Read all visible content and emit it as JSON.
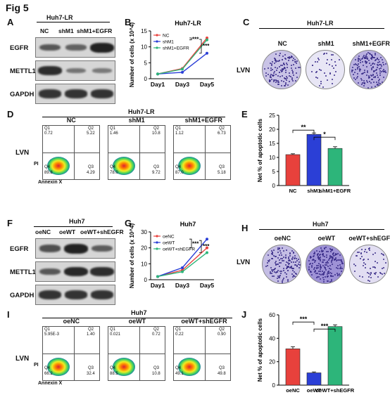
{
  "figure_title": "Fig 5",
  "panels": {
    "A": {
      "label": "A",
      "cell_line": "Huh7-LR",
      "lanes": [
        "NC",
        "shM1",
        "shM1+EGFR"
      ],
      "blots": [
        "EGFR",
        "METTL1",
        "GAPDH"
      ],
      "band_intensity": {
        "EGFR": [
          0.55,
          0.45,
          1.0
        ],
        "METTL1": [
          0.9,
          0.3,
          0.25
        ],
        "GAPDH": [
          0.85,
          0.85,
          0.85
        ]
      }
    },
    "B": {
      "label": "B"
    },
    "C": {
      "label": "C",
      "cell_line": "Huh7-LR",
      "groups": [
        "NC",
        "shM1",
        "shM1+EGFR"
      ],
      "row_label": "LVN"
    },
    "D": {
      "label": "D",
      "cell_line": "Huh7-LR",
      "groups": [
        "NC",
        "shM1",
        "shM1+EGFR"
      ],
      "row_label": "LVN",
      "y_axis": "PI",
      "x_axis": "Annexin X",
      "plots": [
        {
          "q1": "0.72",
          "q2": "5.22",
          "q3": "4.29",
          "q4": "89.8"
        },
        {
          "q1": "1.46",
          "q2": "10.8",
          "q3": "9.72",
          "q4": "78.0"
        },
        {
          "q1": "1.12",
          "q2": "6.73",
          "q3": "5.18",
          "q4": "87.0"
        }
      ]
    },
    "E": {
      "label": "E"
    },
    "F": {
      "label": "F",
      "cell_line": "Huh7",
      "lanes": [
        "oeNC",
        "oeWT",
        "oeWT+shEGFR"
      ],
      "blots": [
        "EGFR",
        "METTL1",
        "GAPDH"
      ],
      "band_intensity": {
        "EGFR": [
          0.6,
          1.0,
          0.5
        ],
        "METTL1": [
          0.55,
          0.95,
          0.9
        ],
        "GAPDH": [
          0.85,
          0.85,
          0.85
        ]
      }
    },
    "G": {
      "label": "G"
    },
    "H": {
      "label": "H",
      "cell_line": "Huh7",
      "groups": [
        "oeNC",
        "oeWT",
        "oeWT+shEGFR"
      ],
      "row_label": "LVN"
    },
    "I": {
      "label": "I",
      "cell_line": "Huh7",
      "groups": [
        "oeNC",
        "oeWT",
        "oeWT+shEGFR"
      ],
      "row_label": "LVN",
      "y_axis": "PI",
      "x_axis": "Annexin X",
      "plots": [
        {
          "q1": "5.95E-3",
          "q2": "1.40",
          "q3": "32.4",
          "q4": "66.2"
        },
        {
          "q1": "0.021",
          "q2": "0.72",
          "q3": "10.8",
          "q4": "88.5"
        },
        {
          "q1": "0.22",
          "q2": "0.90",
          "q3": "49.8",
          "q4": "49.1"
        }
      ]
    },
    "J": {
      "label": "J"
    }
  },
  "chart_data": [
    {
      "id": "B",
      "type": "line",
      "title": "Huh7-LR",
      "xlabel": "",
      "ylabel": "Number of cells (x 10^4)",
      "categories": [
        "Day1",
        "Day3",
        "Day5"
      ],
      "ylim": [
        0,
        15
      ],
      "yticks": [
        0,
        5,
        10,
        15
      ],
      "series": [
        {
          "name": "NC",
          "color": "#e8413c",
          "values": [
            1.5,
            3.2,
            12.8
          ]
        },
        {
          "name": "shM1",
          "color": "#2b3fd6",
          "values": [
            1.5,
            2.0,
            8.0
          ]
        },
        {
          "name": "shM1+EGFR",
          "color": "#2db57a",
          "values": [
            1.5,
            3.0,
            12.2
          ]
        }
      ],
      "annotations": [
        "***",
        "***"
      ],
      "legend": "top-left"
    },
    {
      "id": "E",
      "type": "bar",
      "title": "",
      "xlabel": "",
      "ylabel": "Net % of apoptotic cells",
      "categories": [
        "NC",
        "shM1",
        "shM1+EGFR"
      ],
      "values": [
        11,
        18.2,
        13.2
      ],
      "errors": [
        0.3,
        0.5,
        0.6
      ],
      "colors": [
        "#e8413c",
        "#2b3fd6",
        "#2db57a"
      ],
      "ylim": [
        0,
        25
      ],
      "yticks": [
        0,
        5,
        10,
        15,
        20,
        25
      ],
      "annotations": [
        "**",
        "*"
      ]
    },
    {
      "id": "G",
      "type": "line",
      "title": "Huh7",
      "xlabel": "",
      "ylabel": "Number of cells (x 10^4)",
      "categories": [
        "Day1",
        "Day3",
        "Day5"
      ],
      "ylim": [
        0,
        30
      ],
      "yticks": [
        0,
        10,
        20,
        30
      ],
      "series": [
        {
          "name": "oeNC",
          "color": "#e8413c",
          "values": [
            2,
            6,
            20
          ]
        },
        {
          "name": "oeWT",
          "color": "#2b3fd6",
          "values": [
            2,
            7.5,
            25.5
          ]
        },
        {
          "name": "oeWT+shEGFR",
          "color": "#2db57a",
          "values": [
            2,
            5,
            17
          ]
        }
      ],
      "annotations": [
        "***",
        "***"
      ],
      "legend": "top-left"
    },
    {
      "id": "J",
      "type": "bar",
      "title": "",
      "xlabel": "",
      "ylabel": "Net % of apoptotic cells",
      "categories": [
        "oeNC",
        "oeWT",
        "oeWT+shEGFR"
      ],
      "values": [
        31,
        10.5,
        50
      ],
      "errors": [
        1.8,
        0.8,
        1.5
      ],
      "colors": [
        "#e8413c",
        "#2b3fd6",
        "#2db57a"
      ],
      "ylim": [
        0,
        60
      ],
      "yticks": [
        0,
        20,
        40,
        60
      ],
      "annotations": [
        "***",
        "***"
      ]
    }
  ]
}
